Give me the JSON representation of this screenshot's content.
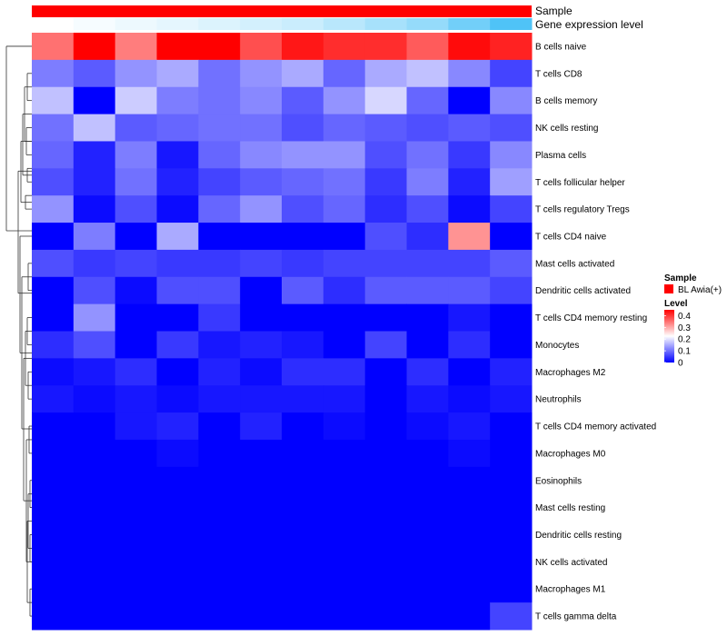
{
  "chart_data": {
    "type": "heatmap",
    "title": "",
    "annotation_tracks": [
      {
        "name": "Sample",
        "label": "Sample"
      },
      {
        "name": "Gene expression level",
        "label": "Gene expression level"
      }
    ],
    "legend": {
      "sample_title": "Sample",
      "sample_entry": "BL Awia(+)",
      "sample_color": "#ff0000",
      "level_title": "Level",
      "level_ticks": [
        "0.4",
        "0.3",
        "0.2",
        "0.1",
        "0"
      ],
      "level_tick_values": [
        0.4,
        0.3,
        0.2,
        0.1,
        0
      ],
      "level_colors": [
        "#0000ff",
        "#ffffff",
        "#ff0000"
      ]
    },
    "value_range": [
      0,
      0.45
    ],
    "n_columns": 12,
    "rows": [
      "B cells naive",
      "T cells CD8",
      "B cells memory",
      "NK cells resting",
      "Plasma cells",
      "T cells follicular helper",
      "T cells regulatory  Tregs",
      "T cells CD4 naive",
      "Mast cells activated",
      "Dendritic cells activated",
      "T cells CD4 memory resting",
      "Monocytes",
      "Macrophages M2",
      "Neutrophils",
      "T cells CD4 memory activated",
      "Macrophages M0",
      "Eosinophils",
      "Mast cells resting",
      "Dendritic cells resting",
      "NK cells activated",
      "Macrophages M1",
      "T cells gamma delta"
    ],
    "values": [
      [
        0.35,
        0.45,
        0.34,
        0.45,
        0.45,
        0.38,
        0.43,
        0.41,
        0.41,
        0.37,
        0.44,
        0.42
      ],
      [
        0.11,
        0.08,
        0.13,
        0.15,
        0.1,
        0.13,
        0.15,
        0.09,
        0.15,
        0.17,
        0.12,
        0.06
      ],
      [
        0.17,
        0.0,
        0.18,
        0.11,
        0.1,
        0.12,
        0.08,
        0.13,
        0.19,
        0.09,
        0.0,
        0.12
      ],
      [
        0.1,
        0.17,
        0.08,
        0.09,
        0.1,
        0.1,
        0.07,
        0.09,
        0.08,
        0.07,
        0.08,
        0.07
      ],
      [
        0.09,
        0.03,
        0.11,
        0.02,
        0.09,
        0.12,
        0.13,
        0.13,
        0.07,
        0.1,
        0.05,
        0.12
      ],
      [
        0.07,
        0.03,
        0.1,
        0.03,
        0.06,
        0.08,
        0.09,
        0.1,
        0.05,
        0.11,
        0.03,
        0.14
      ],
      [
        0.13,
        0.01,
        0.07,
        0.01,
        0.09,
        0.13,
        0.07,
        0.09,
        0.04,
        0.07,
        0.01,
        0.06
      ],
      [
        0.0,
        0.11,
        0.0,
        0.15,
        0.0,
        0.0,
        0.0,
        0.0,
        0.07,
        0.04,
        0.32,
        0.0
      ],
      [
        0.07,
        0.05,
        0.06,
        0.05,
        0.05,
        0.06,
        0.05,
        0.06,
        0.06,
        0.06,
        0.06,
        0.08
      ],
      [
        0.0,
        0.07,
        0.01,
        0.07,
        0.07,
        0.0,
        0.08,
        0.04,
        0.08,
        0.08,
        0.08,
        0.06
      ],
      [
        0.0,
        0.13,
        0.0,
        0.0,
        0.05,
        0.0,
        0.0,
        0.0,
        0.0,
        0.0,
        0.02,
        0.0
      ],
      [
        0.04,
        0.07,
        0.0,
        0.05,
        0.02,
        0.03,
        0.02,
        0.0,
        0.06,
        0.0,
        0.04,
        0.0
      ],
      [
        0.01,
        0.02,
        0.04,
        0.0,
        0.03,
        0.01,
        0.04,
        0.04,
        0.0,
        0.04,
        0.0,
        0.03
      ],
      [
        0.02,
        0.01,
        0.02,
        0.01,
        0.02,
        0.02,
        0.02,
        0.02,
        0.0,
        0.02,
        0.01,
        0.02
      ],
      [
        0.0,
        0.0,
        0.02,
        0.03,
        0.0,
        0.03,
        0.0,
        0.01,
        0.0,
        0.01,
        0.02,
        0.0
      ],
      [
        0.0,
        0.0,
        0.0,
        0.01,
        0.0,
        0.0,
        0.0,
        0.0,
        0.0,
        0.0,
        0.01,
        0.0
      ],
      [
        0.0,
        0.0,
        0.0,
        0.0,
        0.0,
        0.0,
        0.0,
        0.0,
        0.0,
        0.0,
        0.0,
        0.0
      ],
      [
        0.0,
        0.0,
        0.0,
        0.0,
        0.0,
        0.0,
        0.0,
        0.0,
        0.0,
        0.0,
        0.0,
        0.0
      ],
      [
        0.0,
        0.0,
        0.0,
        0.0,
        0.0,
        0.0,
        0.0,
        0.0,
        0.0,
        0.0,
        0.0,
        0.0
      ],
      [
        0.0,
        0.0,
        0.0,
        0.0,
        0.0,
        0.0,
        0.0,
        0.0,
        0.0,
        0.0,
        0.0,
        0.0
      ],
      [
        0.0,
        0.0,
        0.0,
        0.0,
        0.0,
        0.0,
        0.0,
        0.0,
        0.0,
        0.0,
        0.0,
        0.0
      ],
      [
        0.0,
        0.0,
        0.0,
        0.0,
        0.0,
        0.0,
        0.0,
        0.0,
        0.0,
        0.0,
        0.0,
        0.06
      ]
    ],
    "expression_level_track": [
      0.0,
      0.05,
      0.1,
      0.15,
      0.2,
      0.25,
      0.3,
      0.4,
      0.5,
      0.6,
      0.8,
      1.0
    ],
    "expression_track_colors": [
      "#ffffff",
      "#4fc3f7"
    ]
  }
}
